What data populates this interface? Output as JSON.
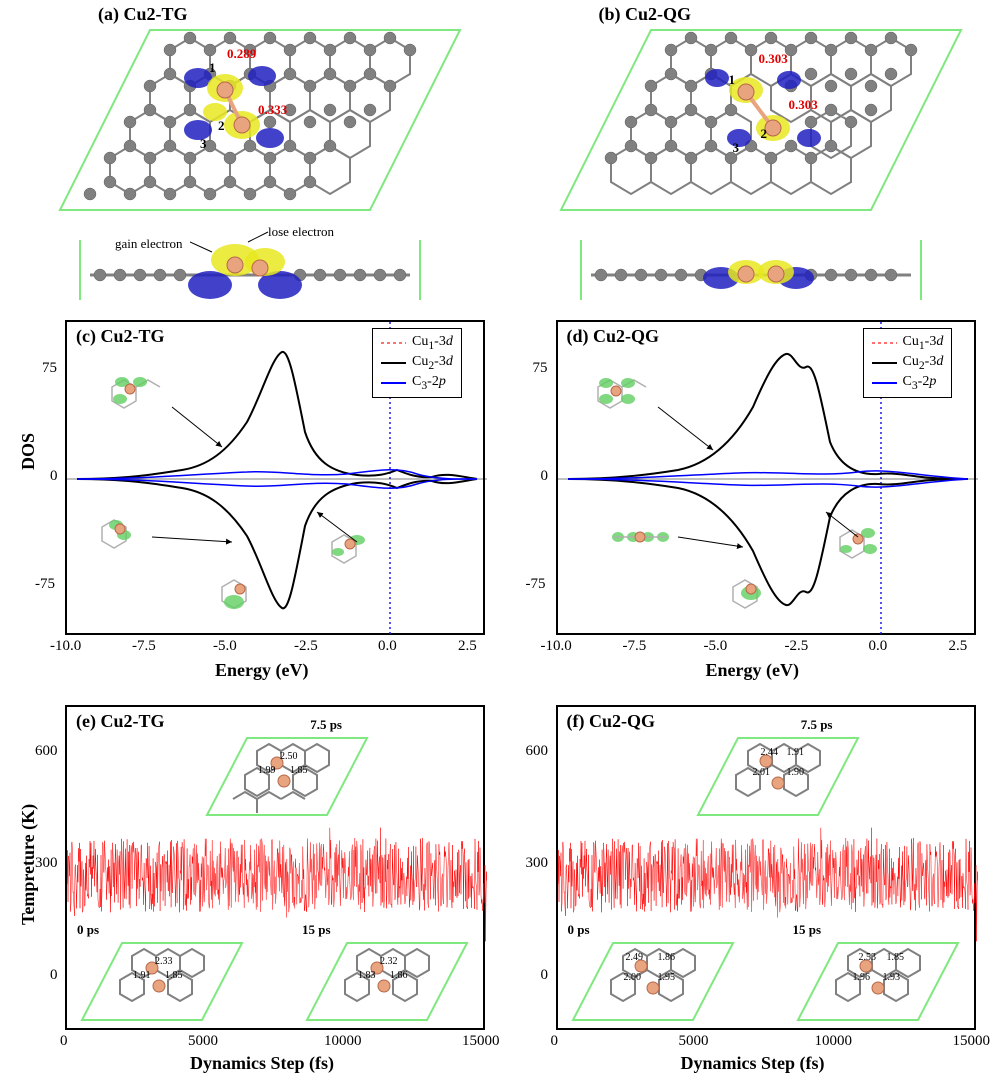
{
  "panels": {
    "a": {
      "label": "(a) Cu2-TG",
      "charges": [
        "0.289",
        "0.333"
      ],
      "atoms": [
        "1",
        "2",
        "3"
      ],
      "annot_gain": "gain electron",
      "annot_lose": "lose electron"
    },
    "b": {
      "label": "(b) Cu2-QG",
      "charges": [
        "0.303",
        "0.303"
      ],
      "atoms": [
        "1",
        "2",
        "3"
      ]
    },
    "c": {
      "label": "(c) Cu2-TG",
      "type": "line",
      "xlabel": "Energy (eV)",
      "ylabel": "DOS",
      "xlim": [
        -10.0,
        3.0
      ],
      "xticks": [
        -10.0,
        -7.5,
        -5.0,
        -2.5,
        0.0,
        2.5
      ],
      "ylim": [
        -110,
        110
      ],
      "yticks": [
        -75,
        0,
        75
      ],
      "fermi_x": 0.0,
      "legend": [
        {
          "label": "Cu₁-3d",
          "color": "#ff7070",
          "dash": true,
          "ital": "d"
        },
        {
          "label": "Cu₂-3d",
          "color": "#000000",
          "dash": false,
          "ital": "d"
        },
        {
          "label": "C₃-2p",
          "color": "#0000ff",
          "dash": false,
          "ital": "p"
        }
      ],
      "background_color": "#ffffff",
      "grid": false
    },
    "d": {
      "label": "(d) Cu2-QG",
      "type": "line",
      "xlabel": "Energy (eV)",
      "ylabel": "DOS",
      "xlim": [
        -10.0,
        3.0
      ],
      "xticks": [
        -10.0,
        -7.5,
        -5.0,
        -2.5,
        0.0,
        2.5
      ],
      "ylim": [
        -110,
        110
      ],
      "yticks": [
        -75,
        0,
        75
      ],
      "fermi_x": 0.0,
      "legend": [
        {
          "label": "Cu₁-3d",
          "color": "#ff7070",
          "dash": true,
          "ital": "d"
        },
        {
          "label": "Cu₂-3d",
          "color": "#000000",
          "dash": false,
          "ital": "d"
        },
        {
          "label": "C₃-2p",
          "color": "#0000ff",
          "dash": false,
          "ital": "p"
        }
      ]
    },
    "e": {
      "label": "(e) Cu2-TG",
      "type": "line",
      "xlabel": "Dynamics Step (fs)",
      "ylabel": "Tempreture (K)",
      "xlim": [
        0,
        15000
      ],
      "xticks": [
        0,
        5000,
        10000,
        15000
      ],
      "ylim": [
        -120,
        750
      ],
      "yticks": [
        0,
        300,
        600
      ],
      "mean_temp": 300,
      "noise_amp": 200,
      "series_color": "#ff0000",
      "snapshots": [
        {
          "t": "0 ps",
          "bonds": [
            "2.33",
            "1.91",
            "1.85"
          ]
        },
        {
          "t": "7.5 ps",
          "bonds": [
            "2.50",
            "1.99",
            "1.85"
          ]
        },
        {
          "t": "15 ps",
          "bonds": [
            "2.32",
            "1.83",
            "1.86"
          ]
        }
      ]
    },
    "f": {
      "label": "(f) Cu2-QG",
      "type": "line",
      "xlabel": "Dynamics Step (fs)",
      "xlim": [
        0,
        15000
      ],
      "xticks": [
        0,
        5000,
        10000,
        15000
      ],
      "ylim": [
        -120,
        750
      ],
      "yticks": [
        0,
        300,
        600
      ],
      "mean_temp": 300,
      "noise_amp": 200,
      "series_color": "#ff0000",
      "snapshots": [
        {
          "t": "0 ps",
          "bonds": [
            "2.49",
            "1.86",
            "2.00",
            "1.95"
          ]
        },
        {
          "t": "7.5 ps",
          "bonds": [
            "2.44",
            "1.91",
            "2.01",
            "1.90"
          ]
        },
        {
          "t": "15 ps",
          "bonds": [
            "2.53",
            "1.85",
            "1.96",
            "1.93"
          ]
        }
      ]
    }
  },
  "colors": {
    "carbon": "#808080",
    "copper": "#e8a47f",
    "gain": "#2020c0",
    "lose": "#e8e820",
    "lattice": "#7FE87F",
    "red": "#ff0000",
    "blue": "#0000ff",
    "black": "#000000",
    "greencloud": "#60d060"
  },
  "fontsize": {
    "panel_label": 18,
    "axis_label": 18,
    "tick": 15,
    "legend": 14,
    "charge": 13
  }
}
